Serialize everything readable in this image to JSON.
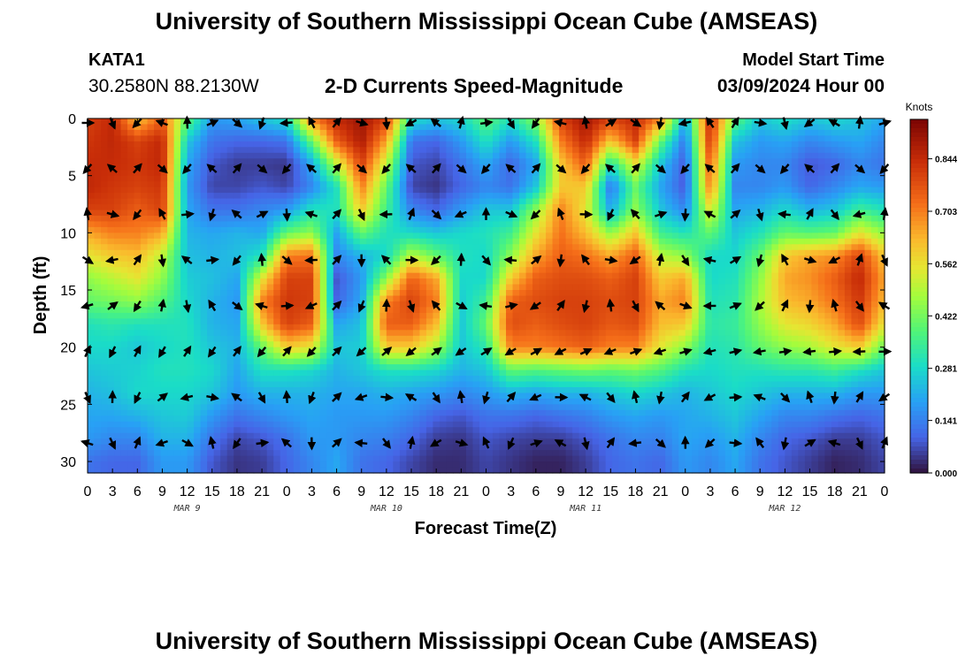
{
  "header": {
    "title": "University of Southern Mississippi Ocean Cube (AMSEAS)",
    "station": "KATA1",
    "coordinates": "30.2580N  88.2130W",
    "subtitle": "2-D Currents Speed-Magnitude",
    "model_start_label": "Model Start Time",
    "model_start_value": "03/09/2024 Hour 00"
  },
  "footer": {
    "title": "University of Southern Mississippi Ocean Cube (AMSEAS)"
  },
  "chart_data": {
    "type": "heatmap",
    "title": "2-D Currents Speed-Magnitude",
    "xlabel": "Forecast Time(Z)",
    "ylabel": "Depth (ft)",
    "x_tick_labels": [
      "0",
      "3",
      "6",
      "9",
      "12",
      "15",
      "18",
      "21",
      "0",
      "3",
      "6",
      "9",
      "12",
      "15",
      "18",
      "21",
      "0",
      "3",
      "6",
      "9",
      "12",
      "15",
      "18",
      "21",
      "0",
      "3",
      "6",
      "9",
      "12",
      "15",
      "18",
      "21",
      "0"
    ],
    "day_labels": [
      {
        "label": "MAR 9",
        "hour": 12
      },
      {
        "label": "MAR 10",
        "hour": 36
      },
      {
        "label": "MAR 11",
        "hour": 60
      },
      {
        "label": "MAR 12",
        "hour": 84
      }
    ],
    "x_range_hours": [
      0,
      96
    ],
    "y_ticks": [
      0,
      5,
      10,
      15,
      20,
      25,
      30
    ],
    "y_range_ft": [
      0,
      31
    ],
    "y_inverted": true,
    "colorbar": {
      "unit": "Knots",
      "ticks": [
        "0.844",
        "0.703",
        "0.562",
        "0.422",
        "0.281",
        "0.141",
        "0.000"
      ],
      "range": [
        0,
        0.95
      ]
    },
    "arrow_hours": [
      0,
      3,
      6,
      9,
      12,
      15,
      18,
      21,
      24,
      27,
      30,
      33,
      36,
      39,
      42,
      45,
      48,
      51,
      54,
      57,
      60,
      63,
      66,
      69,
      72,
      75,
      78,
      81,
      84,
      87,
      90,
      93,
      96
    ],
    "arrow_depths_ft": [
      0,
      4,
      8,
      12,
      16,
      20,
      24,
      28
    ],
    "speed_depth_profile_ft": [
      0,
      2,
      4,
      6,
      8,
      10,
      12,
      14,
      16,
      18,
      20,
      22,
      24,
      26,
      28,
      30
    ],
    "speed_columns": [
      {
        "hour": 0,
        "knots": [
          0.8,
          0.82,
          0.84,
          0.85,
          0.8,
          0.65,
          0.55,
          0.45,
          0.4,
          0.3,
          0.28,
          0.25,
          0.22,
          0.2,
          0.18,
          0.12
        ]
      },
      {
        "hour": 3,
        "knots": [
          0.85,
          0.85,
          0.84,
          0.82,
          0.8,
          0.7,
          0.6,
          0.5,
          0.42,
          0.32,
          0.28,
          0.26,
          0.24,
          0.2,
          0.15,
          0.1
        ]
      },
      {
        "hour": 6,
        "knots": [
          0.6,
          0.8,
          0.82,
          0.8,
          0.75,
          0.7,
          0.62,
          0.55,
          0.45,
          0.3,
          0.25,
          0.27,
          0.28,
          0.22,
          0.15,
          0.1
        ]
      },
      {
        "hour": 9,
        "knots": [
          0.75,
          0.85,
          0.85,
          0.82,
          0.8,
          0.65,
          0.5,
          0.45,
          0.38,
          0.3,
          0.28,
          0.3,
          0.28,
          0.25,
          0.22,
          0.18
        ]
      },
      {
        "hour": 12,
        "knots": [
          0.4,
          0.25,
          0.2,
          0.18,
          0.2,
          0.22,
          0.24,
          0.26,
          0.28,
          0.3,
          0.3,
          0.3,
          0.28,
          0.26,
          0.22,
          0.18
        ]
      },
      {
        "hour": 15,
        "knots": [
          0.18,
          0.12,
          0.08,
          0.06,
          0.12,
          0.2,
          0.22,
          0.24,
          0.22,
          0.22,
          0.25,
          0.28,
          0.25,
          0.18,
          0.12,
          0.08
        ]
      },
      {
        "hour": 18,
        "knots": [
          0.2,
          0.1,
          0.05,
          0.06,
          0.12,
          0.22,
          0.24,
          0.2,
          0.18,
          0.2,
          0.22,
          0.2,
          0.18,
          0.12,
          0.06,
          0.04
        ]
      },
      {
        "hour": 21,
        "knots": [
          0.25,
          0.1,
          0.05,
          0.08,
          0.15,
          0.2,
          0.3,
          0.55,
          0.7,
          0.6,
          0.4,
          0.3,
          0.22,
          0.15,
          0.08,
          0.05
        ]
      },
      {
        "hour": 24,
        "knots": [
          0.3,
          0.12,
          0.04,
          0.06,
          0.18,
          0.4,
          0.7,
          0.8,
          0.82,
          0.8,
          0.6,
          0.3,
          0.22,
          0.18,
          0.12,
          0.1
        ]
      },
      {
        "hour": 27,
        "knots": [
          0.7,
          0.4,
          0.2,
          0.15,
          0.3,
          0.45,
          0.72,
          0.8,
          0.8,
          0.75,
          0.55,
          0.28,
          0.22,
          0.2,
          0.18,
          0.15
        ]
      },
      {
        "hour": 30,
        "knots": [
          0.85,
          0.75,
          0.5,
          0.3,
          0.3,
          0.2,
          0.15,
          0.08,
          0.1,
          0.2,
          0.25,
          0.22,
          0.2,
          0.18,
          0.18,
          0.2
        ]
      },
      {
        "hour": 33,
        "knots": [
          0.9,
          0.88,
          0.8,
          0.7,
          0.6,
          0.4,
          0.22,
          0.18,
          0.2,
          0.24,
          0.26,
          0.25,
          0.2,
          0.18,
          0.15,
          0.12
        ]
      },
      {
        "hour": 36,
        "knots": [
          0.8,
          0.65,
          0.5,
          0.4,
          0.35,
          0.3,
          0.28,
          0.45,
          0.7,
          0.75,
          0.6,
          0.3,
          0.22,
          0.18,
          0.14,
          0.1
        ]
      },
      {
        "hour": 39,
        "knots": [
          0.3,
          0.12,
          0.08,
          0.06,
          0.15,
          0.28,
          0.5,
          0.75,
          0.8,
          0.75,
          0.6,
          0.3,
          0.2,
          0.15,
          0.1,
          0.06
        ]
      },
      {
        "hour": 42,
        "knots": [
          0.25,
          0.1,
          0.06,
          0.04,
          0.1,
          0.25,
          0.4,
          0.65,
          0.7,
          0.62,
          0.48,
          0.28,
          0.18,
          0.1,
          0.05,
          0.03
        ]
      },
      {
        "hour": 45,
        "knots": [
          0.28,
          0.18,
          0.12,
          0.1,
          0.18,
          0.28,
          0.3,
          0.28,
          0.26,
          0.25,
          0.25,
          0.22,
          0.15,
          0.08,
          0.04,
          0.03
        ]
      },
      {
        "hour": 48,
        "knots": [
          0.4,
          0.3,
          0.2,
          0.15,
          0.25,
          0.3,
          0.28,
          0.28,
          0.35,
          0.4,
          0.32,
          0.25,
          0.18,
          0.12,
          0.08,
          0.06
        ]
      },
      {
        "hour": 51,
        "knots": [
          0.3,
          0.18,
          0.1,
          0.12,
          0.25,
          0.35,
          0.45,
          0.6,
          0.75,
          0.78,
          0.7,
          0.4,
          0.22,
          0.12,
          0.06,
          0.04
        ]
      },
      {
        "hour": 54,
        "knots": [
          0.45,
          0.3,
          0.2,
          0.25,
          0.45,
          0.55,
          0.65,
          0.75,
          0.78,
          0.75,
          0.7,
          0.38,
          0.2,
          0.1,
          0.05,
          0.02
        ]
      },
      {
        "hour": 57,
        "knots": [
          0.8,
          0.7,
          0.6,
          0.6,
          0.7,
          0.72,
          0.75,
          0.78,
          0.8,
          0.78,
          0.72,
          0.4,
          0.22,
          0.12,
          0.05,
          0.02
        ]
      },
      {
        "hour": 60,
        "knots": [
          0.9,
          0.85,
          0.75,
          0.6,
          0.55,
          0.62,
          0.72,
          0.78,
          0.8,
          0.8,
          0.75,
          0.42,
          0.22,
          0.14,
          0.08,
          0.05
        ]
      },
      {
        "hour": 63,
        "knots": [
          0.8,
          0.6,
          0.3,
          0.12,
          0.2,
          0.45,
          0.65,
          0.75,
          0.78,
          0.76,
          0.7,
          0.4,
          0.25,
          0.18,
          0.12,
          0.1
        ]
      },
      {
        "hour": 66,
        "knots": [
          0.85,
          0.8,
          0.55,
          0.4,
          0.45,
          0.6,
          0.75,
          0.8,
          0.8,
          0.78,
          0.7,
          0.42,
          0.28,
          0.2,
          0.15,
          0.12
        ]
      },
      {
        "hour": 69,
        "knots": [
          0.7,
          0.4,
          0.25,
          0.2,
          0.25,
          0.35,
          0.5,
          0.6,
          0.65,
          0.62,
          0.55,
          0.38,
          0.25,
          0.18,
          0.14,
          0.1
        ]
      },
      {
        "hour": 72,
        "knots": [
          0.2,
          0.12,
          0.08,
          0.08,
          0.15,
          0.3,
          0.45,
          0.65,
          0.7,
          0.6,
          0.45,
          0.3,
          0.22,
          0.2,
          0.2,
          0.18
        ]
      },
      {
        "hour": 75,
        "knots": [
          0.85,
          0.82,
          0.75,
          0.7,
          0.55,
          0.4,
          0.28,
          0.28,
          0.3,
          0.32,
          0.3,
          0.28,
          0.25,
          0.22,
          0.18,
          0.15
        ]
      },
      {
        "hour": 78,
        "knots": [
          0.4,
          0.25,
          0.18,
          0.15,
          0.2,
          0.25,
          0.28,
          0.3,
          0.32,
          0.34,
          0.32,
          0.3,
          0.28,
          0.25,
          0.22,
          0.2
        ]
      },
      {
        "hour": 81,
        "knots": [
          0.25,
          0.18,
          0.15,
          0.15,
          0.22,
          0.3,
          0.4,
          0.45,
          0.48,
          0.45,
          0.4,
          0.3,
          0.25,
          0.2,
          0.15,
          0.12
        ]
      },
      {
        "hour": 84,
        "knots": [
          0.3,
          0.2,
          0.15,
          0.18,
          0.28,
          0.4,
          0.6,
          0.65,
          0.62,
          0.55,
          0.45,
          0.32,
          0.22,
          0.15,
          0.1,
          0.08
        ]
      },
      {
        "hour": 87,
        "knots": [
          0.25,
          0.15,
          0.08,
          0.1,
          0.22,
          0.38,
          0.65,
          0.68,
          0.65,
          0.58,
          0.48,
          0.32,
          0.22,
          0.15,
          0.08,
          0.05
        ]
      },
      {
        "hour": 90,
        "knots": [
          0.28,
          0.18,
          0.1,
          0.15,
          0.25,
          0.4,
          0.68,
          0.75,
          0.72,
          0.65,
          0.55,
          0.35,
          0.22,
          0.12,
          0.05,
          0.02
        ]
      },
      {
        "hour": 93,
        "knots": [
          0.25,
          0.2,
          0.15,
          0.2,
          0.35,
          0.55,
          0.8,
          0.85,
          0.82,
          0.78,
          0.6,
          0.3,
          0.18,
          0.1,
          0.05,
          0.03
        ]
      },
      {
        "hour": 96,
        "knots": [
          0.2,
          0.15,
          0.12,
          0.18,
          0.3,
          0.45,
          0.6,
          0.65,
          0.62,
          0.55,
          0.4,
          0.25,
          0.18,
          0.12,
          0.08,
          0.06
        ]
      }
    ]
  }
}
